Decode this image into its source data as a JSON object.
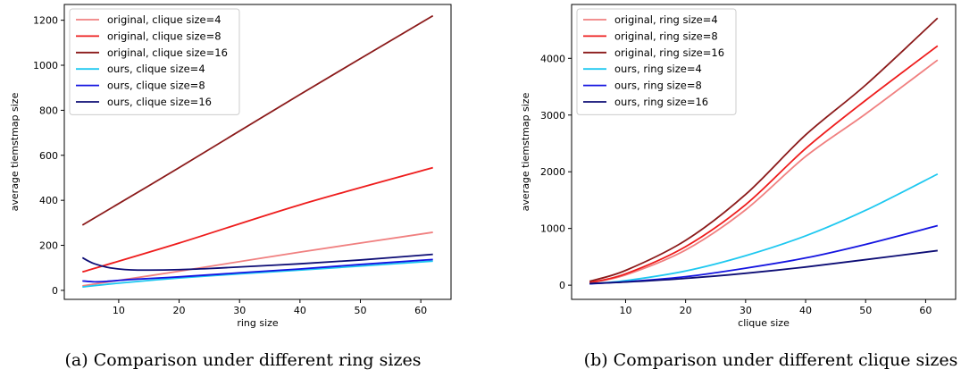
{
  "chart_data": [
    {
      "type": "line",
      "caption": "(a) Comparison under different ring sizes",
      "xlabel": "ring size",
      "ylabel": "average tiemstmap size",
      "xlim": [
        1,
        65
      ],
      "ylim": [
        -40,
        1270
      ],
      "xticks": [
        10,
        20,
        30,
        40,
        50,
        60
      ],
      "yticks": [
        0,
        200,
        400,
        600,
        800,
        1000,
        1200
      ],
      "grid": false,
      "legend_position": "top-left",
      "series": [
        {
          "name": "original, clique size=4",
          "color": "#f08080",
          "x": [
            4,
            20,
            40,
            62
          ],
          "y": [
            20,
            85,
            170,
            258
          ]
        },
        {
          "name": "original, clique size=8",
          "color": "#ee1c1c",
          "x": [
            4,
            20,
            40,
            62
          ],
          "y": [
            82,
            210,
            380,
            545
          ]
        },
        {
          "name": "original, clique size=16",
          "color": "#8b1a1a",
          "x": [
            4,
            20,
            40,
            62
          ],
          "y": [
            290,
            545,
            870,
            1220
          ]
        },
        {
          "name": "ours, clique size=4",
          "color": "#1ec8f0",
          "x": [
            4,
            10,
            20,
            30,
            40,
            50,
            62
          ],
          "y": [
            15,
            32,
            55,
            73,
            90,
            108,
            130
          ]
        },
        {
          "name": "ours, clique size=8",
          "color": "#1414e0",
          "x": [
            4,
            6,
            8,
            12,
            20,
            30,
            40,
            50,
            62
          ],
          "y": [
            42,
            38,
            40,
            48,
            60,
            78,
            95,
            115,
            137
          ]
        },
        {
          "name": "ours, clique size=16",
          "color": "#0d0d75",
          "x": [
            4,
            5,
            6,
            8,
            10,
            12,
            15,
            20,
            25,
            30,
            40,
            50,
            62
          ],
          "y": [
            145,
            130,
            118,
            103,
            95,
            91,
            90,
            92,
            97,
            104,
            118,
            135,
            160
          ]
        }
      ]
    },
    {
      "type": "line",
      "caption": "(b) Comparison under different clique sizes",
      "xlabel": "clique size",
      "ylabel": "average tiemstmap size",
      "xlim": [
        1,
        65
      ],
      "ylim": [
        -250,
        4950
      ],
      "xticks": [
        10,
        20,
        30,
        40,
        50,
        60
      ],
      "yticks": [
        0,
        1000,
        2000,
        3000,
        4000
      ],
      "grid": false,
      "legend_position": "top-left",
      "series": [
        {
          "name": "original, ring size=4",
          "color": "#f08080",
          "x": [
            4,
            10,
            20,
            30,
            40,
            50,
            62
          ],
          "y": [
            40,
            180,
            620,
            1330,
            2270,
            3020,
            3970
          ]
        },
        {
          "name": "original, ring size=8",
          "color": "#ee1c1c",
          "x": [
            4,
            10,
            20,
            30,
            40,
            50,
            62
          ],
          "y": [
            45,
            200,
            680,
            1420,
            2410,
            3260,
            4220
          ]
        },
        {
          "name": "original, ring size=16",
          "color": "#8b1a1a",
          "x": [
            4,
            10,
            20,
            30,
            40,
            50,
            62
          ],
          "y": [
            70,
            260,
            790,
            1600,
            2650,
            3530,
            4710
          ]
        },
        {
          "name": "ours, ring size=4",
          "color": "#1ec8f0",
          "x": [
            4,
            10,
            20,
            30,
            40,
            50,
            62
          ],
          "y": [
            25,
            80,
            250,
            520,
            870,
            1320,
            1960
          ]
        },
        {
          "name": "ours, ring size=8",
          "color": "#1414e0",
          "x": [
            4,
            10,
            20,
            30,
            40,
            50,
            62
          ],
          "y": [
            25,
            60,
            150,
            300,
            480,
            720,
            1050
          ]
        },
        {
          "name": "ours, ring size=16",
          "color": "#0d0d75",
          "x": [
            4,
            10,
            20,
            30,
            40,
            50,
            62
          ],
          "y": [
            30,
            55,
            120,
            210,
            320,
            450,
            610
          ]
        }
      ]
    }
  ]
}
